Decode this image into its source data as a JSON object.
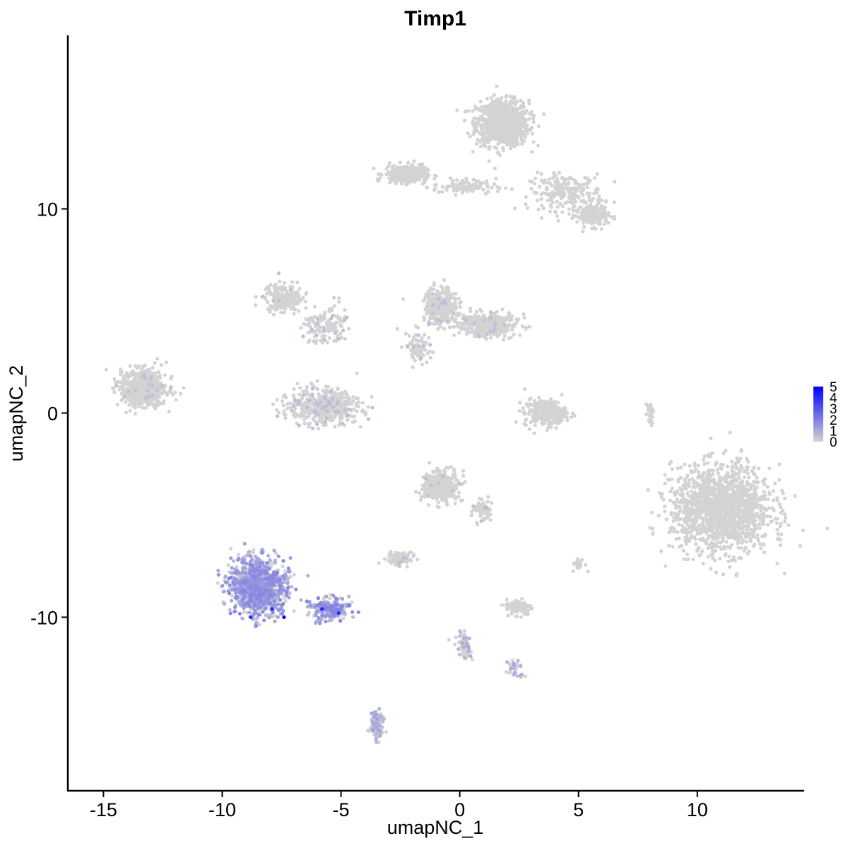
{
  "chart_data": {
    "type": "scatter",
    "title": "Timp1",
    "xlabel": "umapNC_1",
    "ylabel": "umapNC_2",
    "xlim": [
      -16.5,
      14.5
    ],
    "ylim": [
      -18.5,
      18.5
    ],
    "x_ticks": [
      -15,
      -10,
      -5,
      0,
      5,
      10
    ],
    "y_ticks": [
      -10,
      0,
      10
    ],
    "x_tick_labels": [
      "-15",
      "-10",
      "-5",
      "0",
      "5",
      "10"
    ],
    "y_tick_labels": [
      "-10",
      "0",
      "10"
    ],
    "grid": false,
    "color_scale": {
      "low": "#d3d3d3",
      "high": "#0000ff",
      "min": 0,
      "max": 5
    },
    "legend": {
      "position": "right",
      "labels": [
        "5",
        "4",
        "3",
        "2",
        "1",
        "0"
      ]
    },
    "clusters": [
      {
        "cx": 1.8,
        "cy": 14.2,
        "sx": 1.0,
        "sy": 1.0,
        "n": 900,
        "expr": 0
      },
      {
        "cx": 4.5,
        "cy": 10.8,
        "sx": 1.4,
        "sy": 0.8,
        "n": 220,
        "expr": 0
      },
      {
        "cx": 5.6,
        "cy": 9.7,
        "sx": 0.6,
        "sy": 0.5,
        "n": 160,
        "expr": 0
      },
      {
        "cx": -2.3,
        "cy": 11.7,
        "sx": 0.8,
        "sy": 0.4,
        "n": 260,
        "expr": 0
      },
      {
        "cx": 0.2,
        "cy": 11.1,
        "sx": 1.2,
        "sy": 0.35,
        "n": 90,
        "expr": 0
      },
      {
        "cx": -13.3,
        "cy": 1.2,
        "sx": 0.85,
        "sy": 0.8,
        "n": 620,
        "expr": 0.02
      },
      {
        "cx": -7.4,
        "cy": 5.6,
        "sx": 0.7,
        "sy": 0.6,
        "n": 220,
        "expr": 0.02
      },
      {
        "cx": -5.7,
        "cy": 4.3,
        "sx": 0.9,
        "sy": 0.9,
        "n": 130,
        "expr": 0.05
      },
      {
        "cx": -5.7,
        "cy": 0.3,
        "sx": 1.3,
        "sy": 0.7,
        "n": 520,
        "expr": 0.05
      },
      {
        "cx": -0.8,
        "cy": 5.2,
        "sx": 0.6,
        "sy": 0.9,
        "n": 330,
        "expr": 0.03
      },
      {
        "cx": 1.2,
        "cy": 4.3,
        "sx": 1.1,
        "sy": 0.5,
        "n": 380,
        "expr": 0.02
      },
      {
        "cx": -1.7,
        "cy": 3.2,
        "sx": 0.5,
        "sy": 0.8,
        "n": 90,
        "expr": 0.05
      },
      {
        "cx": 3.6,
        "cy": 0.0,
        "sx": 0.8,
        "sy": 0.6,
        "n": 260,
        "expr": 0
      },
      {
        "cx": 11.0,
        "cy": -4.7,
        "sx": 1.9,
        "sy": 1.9,
        "n": 1500,
        "expr": 0
      },
      {
        "cx": -0.8,
        "cy": -3.6,
        "sx": 0.7,
        "sy": 0.7,
        "n": 330,
        "expr": 0.02
      },
      {
        "cx": 0.9,
        "cy": -4.8,
        "sx": 0.4,
        "sy": 0.6,
        "n": 60,
        "expr": 0.05
      },
      {
        "cx": -2.5,
        "cy": -7.1,
        "sx": 0.5,
        "sy": 0.3,
        "n": 90,
        "expr": 0.05
      },
      {
        "cx": 2.5,
        "cy": -9.5,
        "sx": 0.5,
        "sy": 0.35,
        "n": 110,
        "expr": 0
      },
      {
        "cx": 5.0,
        "cy": -7.4,
        "sx": 0.25,
        "sy": 0.3,
        "n": 25,
        "expr": 0
      },
      {
        "cx": -8.5,
        "cy": -8.5,
        "sx": 1.0,
        "sy": 1.2,
        "n": 1100,
        "expr": 0.45
      },
      {
        "cx": -5.5,
        "cy": -9.6,
        "sx": 0.8,
        "sy": 0.5,
        "n": 220,
        "expr": 0.5
      },
      {
        "cx": -3.5,
        "cy": -15.3,
        "sx": 0.25,
        "sy": 0.7,
        "n": 110,
        "expr": 0.25
      },
      {
        "cx": 0.2,
        "cy": -11.4,
        "sx": 0.25,
        "sy": 0.7,
        "n": 70,
        "expr": 0.2
      },
      {
        "cx": 2.3,
        "cy": -12.5,
        "sx": 0.35,
        "sy": 0.35,
        "n": 40,
        "expr": 0.2
      },
      {
        "cx": 8.0,
        "cy": 0.0,
        "sx": 0.15,
        "sy": 0.5,
        "n": 25,
        "expr": 0
      }
    ],
    "highlight_points": [
      {
        "x": -7.4,
        "y": -10.0,
        "value": 5
      },
      {
        "x": -5.8,
        "y": -9.6,
        "value": 4.2
      },
      {
        "x": -8.8,
        "y": -10.0,
        "value": 4
      },
      {
        "x": -7.9,
        "y": -9.6,
        "value": 4
      },
      {
        "x": -5.1,
        "y": -9.8,
        "value": 4
      }
    ]
  }
}
